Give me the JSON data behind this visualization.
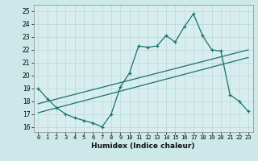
{
  "title": "",
  "xlabel": "Humidex (Indice chaleur)",
  "xlim": [
    -0.5,
    23.5
  ],
  "ylim": [
    15.6,
    25.5
  ],
  "yticks": [
    16,
    17,
    18,
    19,
    20,
    21,
    22,
    23,
    24,
    25
  ],
  "xticks": [
    0,
    1,
    2,
    3,
    4,
    5,
    6,
    7,
    8,
    9,
    10,
    11,
    12,
    13,
    14,
    15,
    16,
    17,
    18,
    19,
    20,
    21,
    22,
    23
  ],
  "bg_color": "#cce8e8",
  "plot_bg_color": "#d8eeee",
  "line_color": "#1a7070",
  "grid_color": "#b8d8d8",
  "line1_x": [
    0,
    1,
    2,
    3,
    4,
    5,
    6,
    7,
    8,
    9,
    10,
    11,
    12,
    13,
    14,
    15,
    16,
    17,
    18,
    19,
    20,
    21,
    22,
    23
  ],
  "line1_y": [
    19.0,
    18.2,
    17.5,
    17.0,
    16.7,
    16.5,
    16.3,
    16.0,
    17.0,
    19.1,
    20.2,
    22.3,
    22.2,
    22.3,
    23.1,
    22.6,
    23.8,
    24.8,
    23.1,
    22.0,
    21.9,
    18.5,
    18.0,
    17.2
  ],
  "line2_x": [
    0,
    23
  ],
  "line2_y": [
    17.8,
    22.0
  ],
  "line3_x": [
    0,
    23
  ],
  "line3_y": [
    17.1,
    21.4
  ]
}
